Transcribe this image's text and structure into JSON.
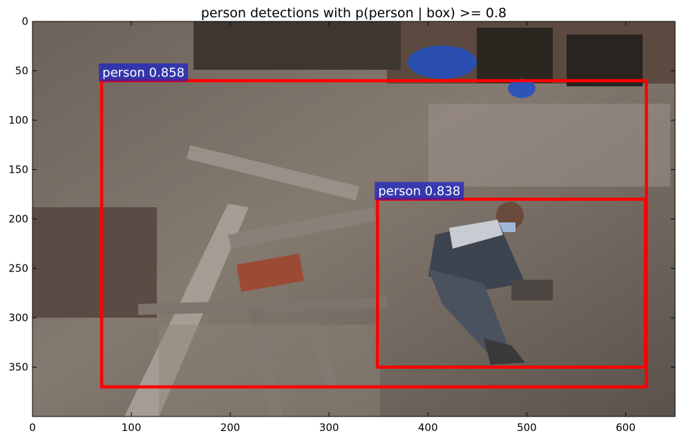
{
  "figure": {
    "title": "person detections with p(person | box) >= 0.8"
  },
  "axes": {
    "x_ticks": [
      0,
      100,
      200,
      300,
      400,
      500,
      600
    ],
    "y_ticks": [
      0,
      50,
      100,
      150,
      200,
      250,
      300,
      350
    ],
    "x_range": [
      0,
      650
    ],
    "y_range": [
      400,
      0
    ]
  },
  "image": {
    "scene": "earthquake rubble with a man in a striped jacket and face mask sitting among broken bricks and timber beams",
    "detections": [
      {
        "label": "person 0.858",
        "class": "person",
        "score": 0.858,
        "box": {
          "x0": 70,
          "y0": 60,
          "x1": 621,
          "y1": 370
        },
        "box_color": "#ff0000",
        "label_bg": "#1a22c8"
      },
      {
        "label": "person 0.838",
        "class": "person",
        "score": 0.838,
        "box": {
          "x0": 349,
          "y0": 180,
          "x1": 620,
          "y1": 350
        },
        "box_color": "#ff0000",
        "label_bg": "#1a22c8"
      }
    ]
  }
}
